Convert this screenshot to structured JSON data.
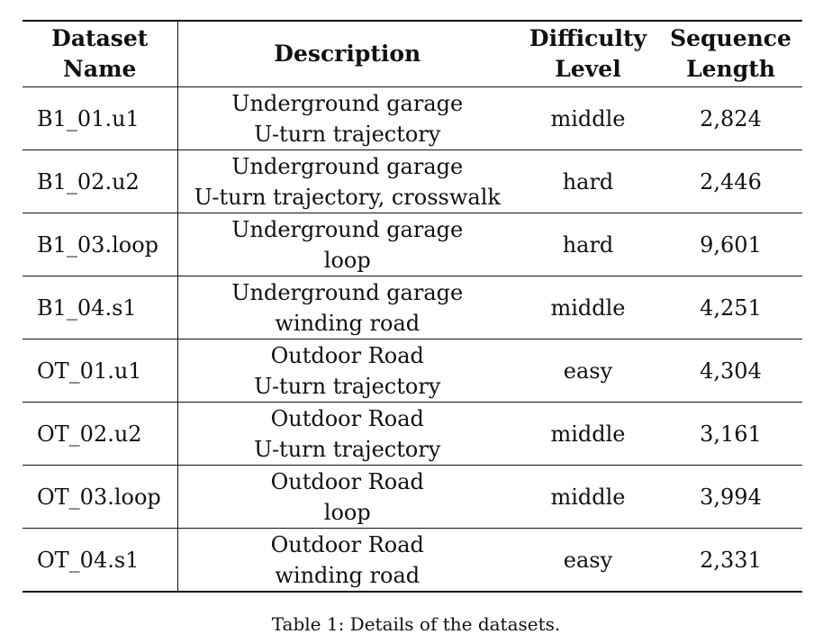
{
  "table": {
    "headers": {
      "name": [
        "Dataset",
        "Name"
      ],
      "description": [
        "Description"
      ],
      "difficulty": [
        "Difficulty",
        "Level"
      ],
      "length": [
        "Sequence",
        "Length"
      ]
    },
    "rows": [
      {
        "name": "B1_01.u1",
        "description": [
          "Underground garage",
          "U-turn trajectory"
        ],
        "difficulty": "middle",
        "length": "2,824"
      },
      {
        "name": "B1_02.u2",
        "description": [
          "Underground garage",
          "U-turn trajectory, crosswalk"
        ],
        "difficulty": "hard",
        "length": "2,446"
      },
      {
        "name": "B1_03.loop",
        "description": [
          "Underground garage",
          "loop"
        ],
        "difficulty": "hard",
        "length": "9,601"
      },
      {
        "name": "B1_04.s1",
        "description": [
          "Underground garage",
          "winding road"
        ],
        "difficulty": "middle",
        "length": "4,251"
      },
      {
        "name": "OT_01.u1",
        "description": [
          "Outdoor Road",
          "U-turn trajectory"
        ],
        "difficulty": "easy",
        "length": "4,304"
      },
      {
        "name": "OT_02.u2",
        "description": [
          "Outdoor Road",
          "U-turn trajectory"
        ],
        "difficulty": "middle",
        "length": "3,161"
      },
      {
        "name": "OT_03.loop",
        "description": [
          "Outdoor Road",
          "loop"
        ],
        "difficulty": "middle",
        "length": "3,994"
      },
      {
        "name": "OT_04.s1",
        "description": [
          "Outdoor Road",
          "winding road"
        ],
        "difficulty": "easy",
        "length": "2,331"
      }
    ]
  },
  "caption": "Table 1: Details of the datasets."
}
